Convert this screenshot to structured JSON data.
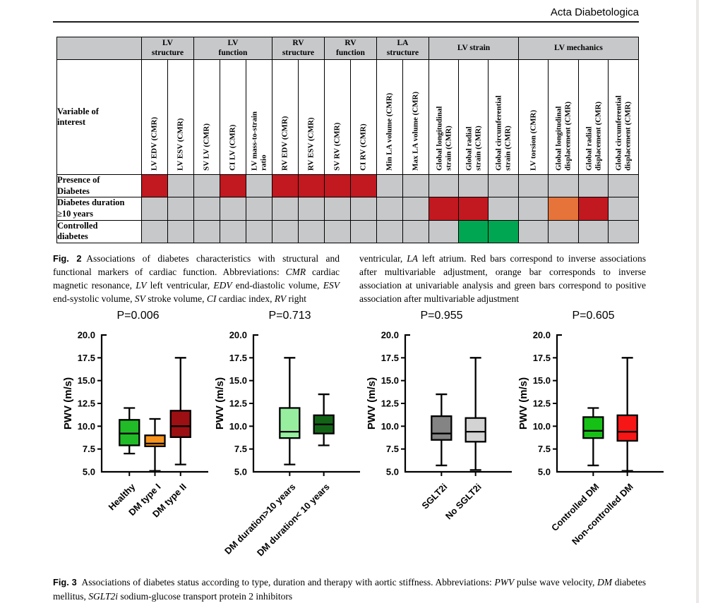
{
  "journal": {
    "title": "Acta Diabetologica"
  },
  "fig2": {
    "table": {
      "corner_label": "Variable of\ninterest",
      "groups": [
        {
          "label": "LV\nstructure",
          "span": 2
        },
        {
          "label": "LV\nfunction",
          "span": 3
        },
        {
          "label": "RV\nstructure",
          "span": 2
        },
        {
          "label": "RV\nfunction",
          "span": 2
        },
        {
          "label": "LA\nstructure",
          "span": 2
        },
        {
          "label": "LV strain",
          "span": 3
        },
        {
          "label": "LV mechanics",
          "span": 4
        }
      ],
      "columns": [
        "LV EDV (CMR)",
        "LV ESV (CMR)",
        "SV LV (CMR)",
        "CI LV (CMR)",
        "LV mass-to-strain\nratio",
        "RV EDV (CMR)",
        "RV ESV (CMR)",
        "SV RV (CMR)",
        "CI RV (CMR)",
        "Min LA volume (CMR)",
        "Max LA volume (CMR)",
        "Global longitudinal\nstrain (CMR)",
        "Global radial\nstrain (CMR)",
        "Global circumferential\nstrain (CMR)",
        "LV torsion (CMR)",
        "Global longitudinal\ndisplacement (CMR)",
        "Global radial\ndisplacement (CMR)",
        "Global circumferential\ndisplacement (CMR)"
      ],
      "rows": [
        {
          "label": "Presence of\nDiabetes",
          "cells": [
            "red",
            "gray",
            "gray",
            "red",
            "gray",
            "red",
            "red",
            "red",
            "red",
            "gray",
            "gray",
            "gray",
            "gray",
            "gray",
            "gray",
            "gray",
            "gray",
            "gray"
          ]
        },
        {
          "label": "Diabetes duration\n≥10 years",
          "cells": [
            "gray",
            "gray",
            "gray",
            "gray",
            "gray",
            "gray",
            "gray",
            "gray",
            "gray",
            "gray",
            "gray",
            "red",
            "red",
            "gray",
            "gray",
            "orange",
            "red",
            "gray"
          ]
        },
        {
          "label": "Controlled\ndiabetes",
          "cells": [
            "gray",
            "gray",
            "gray",
            "gray",
            "gray",
            "gray",
            "gray",
            "gray",
            "gray",
            "gray",
            "gray",
            "gray",
            "green",
            "green",
            "gray",
            "gray",
            "gray",
            "gray"
          ]
        }
      ],
      "colors": {
        "red": "#c2181f",
        "orange": "#e6733a",
        "green": "#00a651",
        "gray": "#c7c8ca"
      }
    },
    "caption_left": [
      {
        "t": "Fig. 2",
        "b": 1,
        "sans": 1
      },
      {
        "t": " Associations of diabetes characteristics with structural and functional markers of cardiac function. Abbreviations: "
      },
      {
        "t": "CMR",
        "i": 1
      },
      {
        "t": " cardiac magnetic resonance, "
      },
      {
        "t": "LV",
        "i": 1
      },
      {
        "t": " left ventricular, "
      },
      {
        "t": "EDV",
        "i": 1
      },
      {
        "t": " end-diastolic volume, "
      },
      {
        "t": "ESV",
        "i": 1
      },
      {
        "t": " end-systolic volume, "
      },
      {
        "t": "SV",
        "i": 1
      },
      {
        "t": " stroke volume, "
      },
      {
        "t": "CI",
        "i": 1
      },
      {
        "t": " cardiac index, "
      },
      {
        "t": "RV",
        "i": 1
      },
      {
        "t": " right"
      }
    ],
    "caption_right": [
      {
        "t": "ventricular, "
      },
      {
        "t": "LA",
        "i": 1
      },
      {
        "t": " left atrium. Red bars correspond to inverse associations after multivariable adjustment, orange bar corresponds to inverse association at univariable analysis and green bars correspond to positive association after multivariable adjustment"
      }
    ]
  },
  "chart_data": {
    "type": "box",
    "ylabel": "PWV (m/s)",
    "ymin": 5.0,
    "ymax": 20.0,
    "yticks": [
      5.0,
      7.5,
      10.0,
      12.5,
      15.0,
      17.5,
      20.0
    ],
    "plots": [
      {
        "p_label": "P=0.006",
        "boxes": [
          {
            "label": "Healthy",
            "color": "#22bb28",
            "low": 7.0,
            "q1": 7.9,
            "median": 9.2,
            "q3": 10.7,
            "high": 12.0
          },
          {
            "label": "DM type I",
            "color": "#f8941d",
            "low": 5.1,
            "q1": 7.8,
            "median": 8.1,
            "q3": 9.0,
            "high": 10.8
          },
          {
            "label": "DM type II",
            "color": "#9c1014",
            "low": 5.8,
            "q1": 8.8,
            "median": 10.0,
            "q3": 11.7,
            "high": 17.5
          }
        ]
      },
      {
        "p_label": "P=0.713",
        "boxes": [
          {
            "label": "DM duration>10 years",
            "color": "#97ee9f",
            "low": 5.8,
            "q1": 8.7,
            "median": 9.4,
            "q3": 12.0,
            "high": 17.5
          },
          {
            "label": "DM duration< 10 years",
            "color": "#136317",
            "low": 7.9,
            "q1": 9.2,
            "median": 10.2,
            "q3": 11.2,
            "high": 13.5
          }
        ]
      },
      {
        "p_label": "P=0.955",
        "boxes": [
          {
            "label": "SGLT2i",
            "color": "#848484",
            "low": 5.7,
            "q1": 8.5,
            "median": 9.2,
            "q3": 11.1,
            "high": 13.5
          },
          {
            "label": "No SGLT2i",
            "color": "#d3d3d3",
            "low": 5.2,
            "q1": 8.3,
            "median": 9.4,
            "q3": 10.9,
            "high": 17.5
          }
        ]
      },
      {
        "p_label": "P=0.605",
        "boxes": [
          {
            "label": "Controlled DM",
            "color": "#16c116",
            "low": 5.7,
            "q1": 8.7,
            "median": 9.5,
            "q3": 11.0,
            "high": 12.0
          },
          {
            "label": "Non-controlled DM",
            "color": "#f61616",
            "low": 5.1,
            "q1": 8.4,
            "median": 9.4,
            "q3": 11.2,
            "high": 17.5
          }
        ]
      }
    ]
  },
  "fig3": {
    "caption": [
      {
        "t": "Fig. 3",
        "b": 1,
        "sans": 1
      },
      {
        "t": " Associations of diabetes status according to type, duration and therapy with aortic stiffness. Abbreviations: "
      },
      {
        "t": "PWV",
        "i": 1
      },
      {
        "t": " pulse wave velocity, "
      },
      {
        "t": "DM",
        "i": 1
      },
      {
        "t": " diabetes mellitus, "
      },
      {
        "t": "SGLT2i",
        "i": 1
      },
      {
        "t": " sodium-glucose transport protein 2 inhibitors"
      }
    ]
  }
}
